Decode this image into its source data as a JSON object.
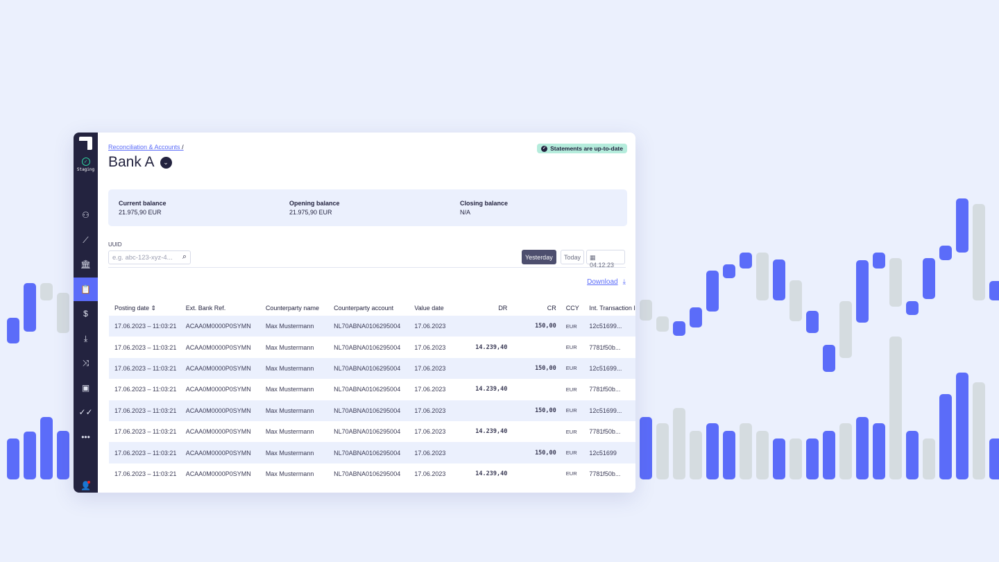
{
  "colors": {
    "accent": "#5b6cf9",
    "sidebar": "#23233f",
    "bar_blue": "#5b6cf9",
    "bar_grey": "#d5dce0",
    "badge": "#b5ecdc"
  },
  "sidebar": {
    "env_label": "Staging",
    "items": [
      {
        "icon": "user-gear-icon"
      },
      {
        "icon": "trend-icon"
      },
      {
        "icon": "bank-icon"
      },
      {
        "icon": "clipboard-check-icon",
        "active": true
      },
      {
        "icon": "dollar-icon"
      },
      {
        "icon": "download-icon"
      },
      {
        "icon": "shuffle-icon"
      },
      {
        "icon": "cash-icon"
      },
      {
        "icon": "double-check-icon"
      },
      {
        "icon": "more-icon"
      }
    ],
    "profile_icon": "user-icon"
  },
  "breadcrumb": {
    "link": "Reconciliation & Accounts",
    "sep": "/"
  },
  "title": "Bank A",
  "status_badge": "Statements are up-to-date",
  "balances": [
    {
      "label": "Current balance",
      "value": "21.975,90 EUR"
    },
    {
      "label": "Opening balance",
      "value": "21.975,90 EUR"
    },
    {
      "label": "Closing balance",
      "value": "N/A"
    }
  ],
  "filter": {
    "uuid_label": "UUID",
    "uuid_placeholder": "e.g. abc-123-xyz-4...",
    "yesterday": "Yesterday",
    "today": "Today",
    "date": "04.12.23"
  },
  "download": "Download",
  "table": {
    "columns": [
      "Posting date",
      "Ext. Bank Ref.",
      "Counterparty name",
      "Counterparty account",
      "Value date",
      "DR",
      "CR",
      "CCY",
      "Int. Transaction I"
    ],
    "rows": [
      [
        "17.06.2023 – 11:03:21",
        "ACAA0M0000P0SYMN",
        "Max Mustermann",
        "NL70ABNA0106295004",
        "17.06.2023",
        "",
        "150,00",
        "EUR",
        "12c51699..."
      ],
      [
        "17.06.2023 – 11:03:21",
        "ACAA0M0000P0SYMN",
        "Max Mustermann",
        "NL70ABNA0106295004",
        "17.06.2023",
        "14.239,40",
        "",
        "EUR",
        "7781f50b..."
      ],
      [
        "17.06.2023 – 11:03:21",
        "ACAA0M0000P0SYMN",
        "Max Mustermann",
        "NL70ABNA0106295004",
        "17.06.2023",
        "",
        "150,00",
        "EUR",
        "12c51699..."
      ],
      [
        "17.06.2023 – 11:03:21",
        "ACAA0M0000P0SYMN",
        "Max Mustermann",
        "NL70ABNA0106295004",
        "17.06.2023",
        "14.239,40",
        "",
        "EUR",
        "7781f50b..."
      ],
      [
        "17.06.2023 – 11:03:21",
        "ACAA0M0000P0SYMN",
        "Max Mustermann",
        "NL70ABNA0106295004",
        "17.06.2023",
        "",
        "150,00",
        "EUR",
        "12c51699..."
      ],
      [
        "17.06.2023 – 11:03:21",
        "ACAA0M0000P0SYMN",
        "Max Mustermann",
        "NL70ABNA0106295004",
        "17.06.2023",
        "14.239,40",
        "",
        "EUR",
        "7781f50b..."
      ],
      [
        "17.06.2023 – 11:03:21",
        "ACAA0M0000P0SYMN",
        "Max Mustermann",
        "NL70ABNA0106295004",
        "17.06.2023",
        "",
        "150,00",
        "EUR",
        "12c51699"
      ],
      [
        "17.06.2023 – 11:03:21",
        "ACAA0M0000P0SYMN",
        "Max Mustermann",
        "NL70ABNA0106295004",
        "17.06.2023",
        "14.239,40",
        "",
        "EUR",
        "7781f50b..."
      ]
    ]
  }
}
